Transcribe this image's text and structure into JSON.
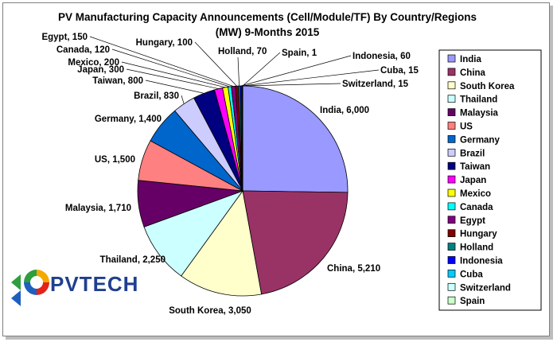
{
  "chart_data": {
    "type": "pie",
    "title": "PV Manufacturing Capacity Announcements   (Cell/Module/TF) By Country/Regions",
    "subtitle": "(MW) 9-Months 2015",
    "legend_position": "right",
    "slices": [
      {
        "name": "India",
        "value": 6000,
        "label": "India, 6,000",
        "color": "#9999ff"
      },
      {
        "name": "China",
        "value": 5210,
        "label": "China, 5,210",
        "color": "#993366"
      },
      {
        "name": "South Korea",
        "value": 3050,
        "label": "South Korea, 3,050",
        "color": "#ffffcc"
      },
      {
        "name": "Thailand",
        "value": 2250,
        "label": "Thailand, 2,250",
        "color": "#ccffff"
      },
      {
        "name": "Malaysia",
        "value": 1710,
        "label": "Malaysia, 1,710",
        "color": "#660066"
      },
      {
        "name": "US",
        "value": 1500,
        "label": "US, 1,500",
        "color": "#ff8080"
      },
      {
        "name": "Germany",
        "value": 1400,
        "label": "Germany, 1,400",
        "color": "#0066cc"
      },
      {
        "name": "Brazil",
        "value": 830,
        "label": "Brazil, 830",
        "color": "#ccccff"
      },
      {
        "name": "Taiwan",
        "value": 800,
        "label": "Taiwan, 800",
        "color": "#000080"
      },
      {
        "name": "Japan",
        "value": 300,
        "label": "Japan, 300",
        "color": "#ff00ff"
      },
      {
        "name": "Mexico",
        "value": 200,
        "label": "Mexico, 200",
        "color": "#ffff00"
      },
      {
        "name": "Canada",
        "value": 120,
        "label": "Canada, 120",
        "color": "#00ffff"
      },
      {
        "name": "Egypt",
        "value": 150,
        "label": "Egypt, 150",
        "color": "#800080"
      },
      {
        "name": "Hungary",
        "value": 100,
        "label": "Hungary, 100",
        "color": "#800000"
      },
      {
        "name": "Holland",
        "value": 70,
        "label": "Holland, 70",
        "color": "#008080"
      },
      {
        "name": "Indonesia",
        "value": 60,
        "label": "Indonesia, 60",
        "color": "#0000ff"
      },
      {
        "name": "Cuba",
        "value": 15,
        "label": "Cuba, 15",
        "color": "#00ccff"
      },
      {
        "name": "Switzerland",
        "value": 15,
        "label": "Switzerland, 15",
        "color": "#ccffff"
      },
      {
        "name": "Spain",
        "value": 1,
        "label": "Spain, 1",
        "color": "#ccffcc"
      }
    ]
  },
  "logo": {
    "text": "PVTECH",
    "accent_colors": [
      "#2e9e3e",
      "#f2a900",
      "#e2231a",
      "#1f5fbf"
    ]
  }
}
